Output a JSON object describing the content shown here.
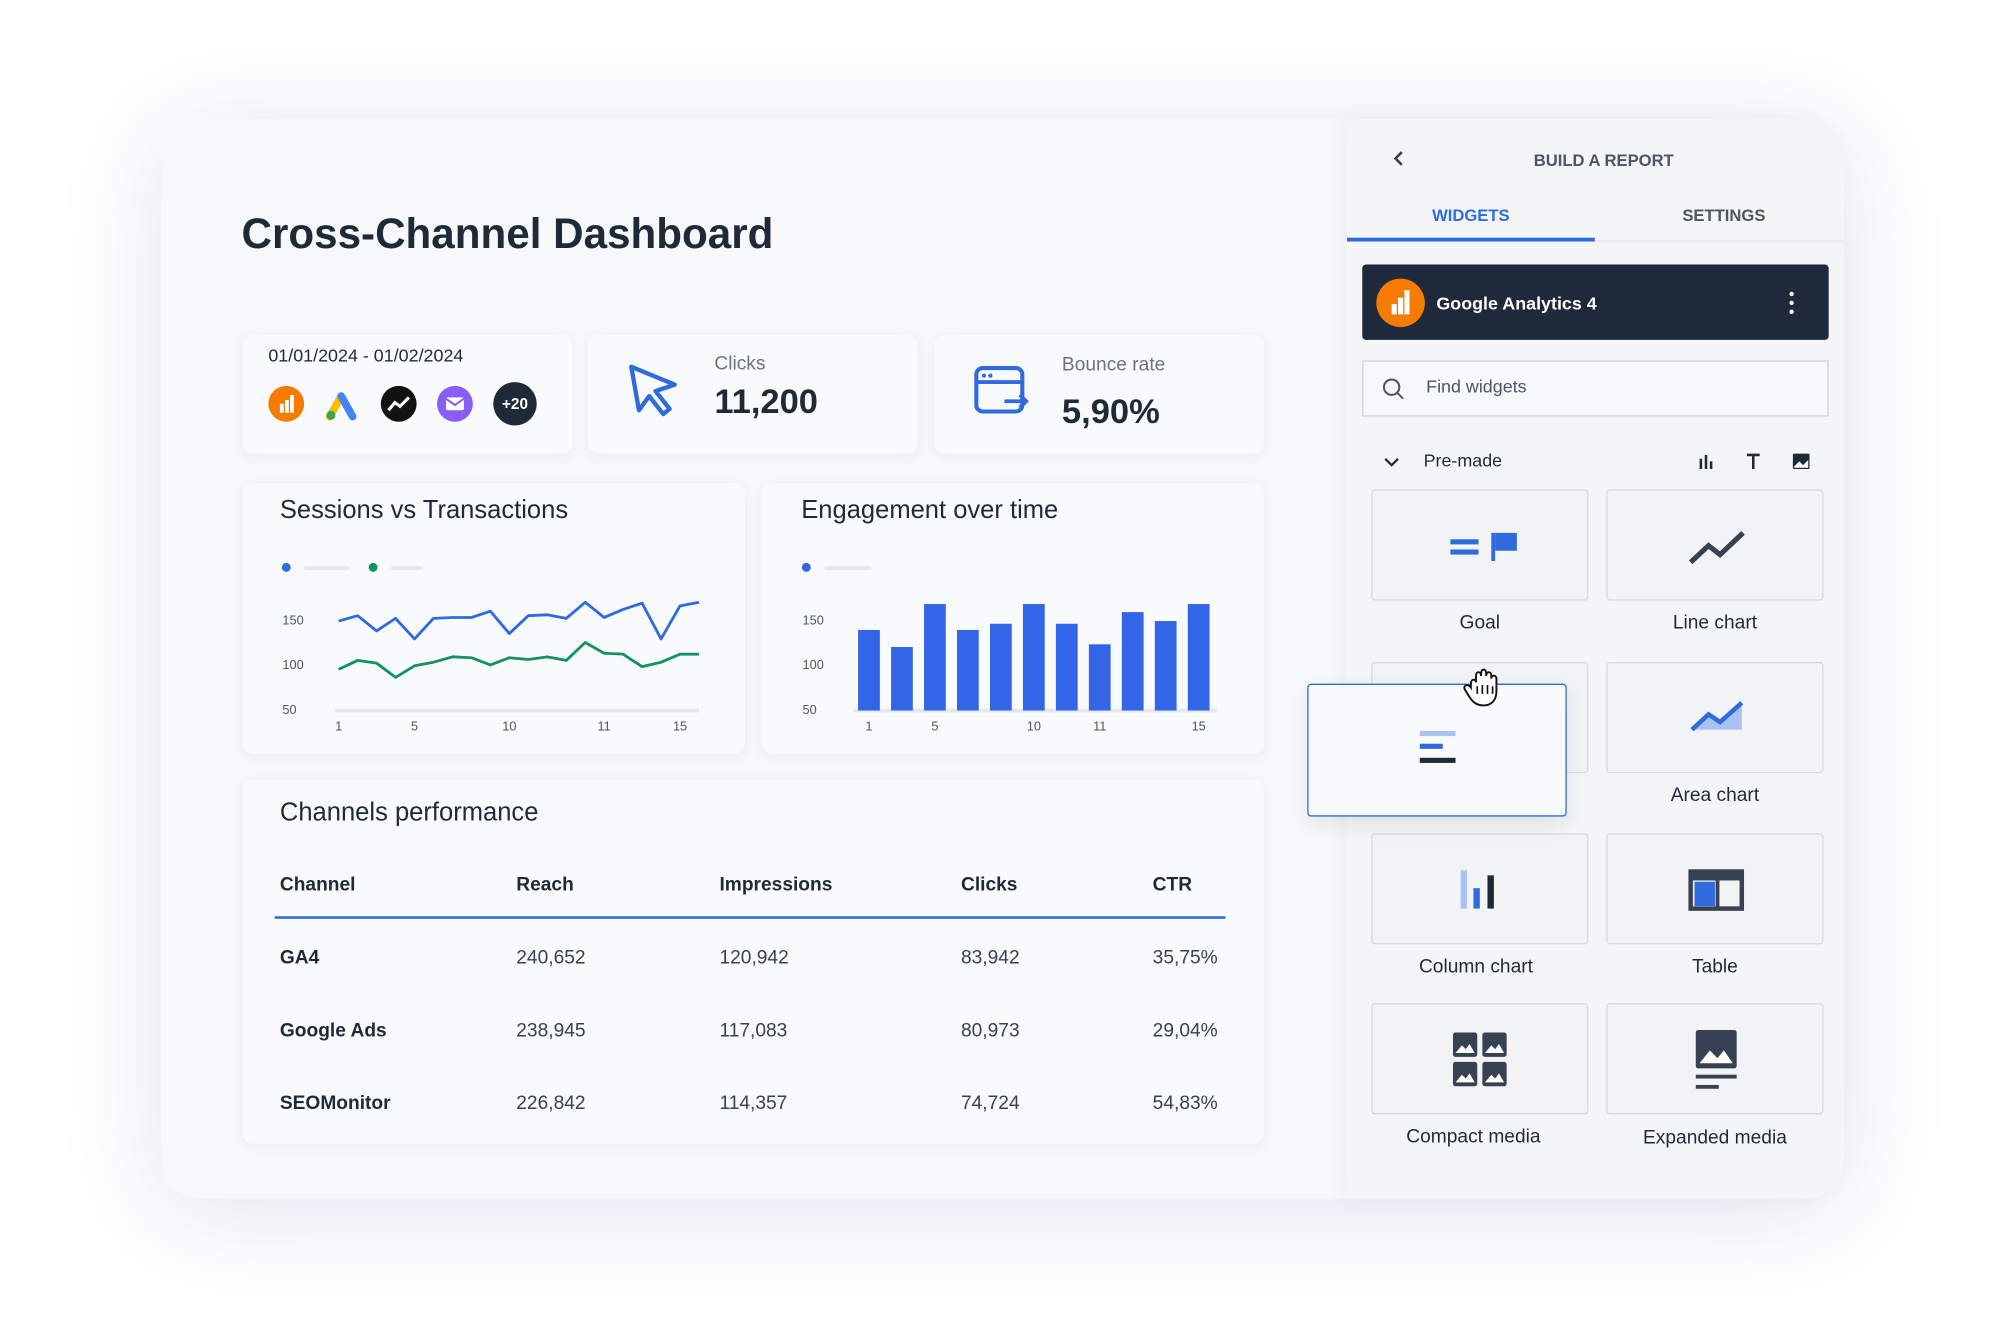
{
  "dashboard": {
    "title": "Cross-Channel Dashboard",
    "date_range": "01/01/2024 - 01/02/2024",
    "more_sources": "+20",
    "kpis": [
      {
        "label": "Clicks",
        "value": "11,200"
      },
      {
        "label": "Bounce rate",
        "value": "5,90%"
      }
    ],
    "table": {
      "title": "Channels performance",
      "columns": [
        "Channel",
        "Reach",
        "Impressions",
        "Clicks",
        "CTR"
      ],
      "rows": [
        [
          "GA4",
          "240,652",
          "120,942",
          "83,942",
          "35,75%"
        ],
        [
          "Google Ads",
          "238,945",
          "117,083",
          "80,973",
          "29,04%"
        ],
        [
          "SEOMonitor",
          "226,842",
          "114,357",
          "74,724",
          "54,83%"
        ]
      ]
    }
  },
  "chart_data": [
    {
      "type": "line",
      "title": "Sessions vs Transactions",
      "categories": [
        "1",
        null,
        null,
        null,
        "5",
        null,
        null,
        null,
        null,
        "10",
        null,
        null,
        null,
        null,
        "11",
        null,
        null,
        null,
        "15",
        null
      ],
      "series": [
        {
          "color": "#2f6bde",
          "values": [
            150,
            156,
            139,
            153,
            130,
            153,
            154,
            154,
            161,
            136,
            156,
            157,
            153,
            171,
            154,
            163,
            170,
            130,
            167,
            171
          ]
        },
        {
          "color": "#12935f",
          "values": [
            96,
            106,
            103,
            87,
            100,
            104,
            110,
            109,
            101,
            109,
            107,
            110,
            106,
            126,
            114,
            113,
            99,
            104,
            113,
            113
          ]
        }
      ],
      "ylim": [
        50,
        180
      ],
      "yticks": [
        50,
        100,
        150
      ]
    },
    {
      "type": "bar",
      "title": "Engagement over time",
      "categories": [
        "1",
        null,
        "5",
        null,
        null,
        "10",
        null,
        "11",
        null,
        null,
        "15"
      ],
      "color": "#3366e6",
      "values": [
        140,
        121,
        169,
        140,
        147,
        169,
        147,
        124,
        160,
        150,
        169
      ],
      "ylim": [
        50,
        180
      ],
      "yticks": [
        50,
        100,
        150
      ]
    }
  ],
  "panel": {
    "title": "BUILD A REPORT",
    "tabs": [
      "WIDGETS",
      "SETTINGS"
    ],
    "source": "Google Analytics 4",
    "search_placeholder": "Find widgets",
    "section": "Pre-made",
    "widgets": [
      "Goal",
      "Line chart",
      "Area chart",
      "Column chart",
      "Table",
      "Compact media",
      "Expanded media"
    ]
  }
}
